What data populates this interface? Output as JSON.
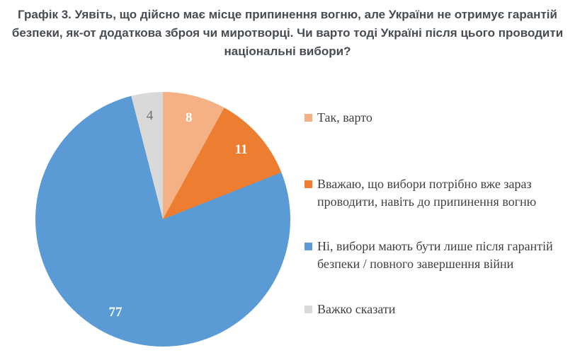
{
  "chart_data": {
    "type": "pie",
    "title": "Графік 3. Уявіть, що дійсно має місце припинення вогню, але України не отримує гарантій безпеки, як-от додаткова зброя чи миротворці. Чи варто тоді Україні після цього проводити національні вибори?",
    "unit": "percent",
    "start_angle_deg": 0,
    "direction": "clockwise",
    "legend_position": "right",
    "slices": [
      {
        "label": "Так, варто",
        "value": 8,
        "color": "#F4B183",
        "value_label_color": "#FFFFFF",
        "value_label_weight": "bold"
      },
      {
        "label": "Вважаю, що вибори потрібно вже зараз проводити, навіть до припинення вогню",
        "value": 11,
        "color": "#ED7D31",
        "value_label_color": "#FFFFFF",
        "value_label_weight": "bold"
      },
      {
        "label": "Ні, вибори мають бути лише після гарантій безпеки / повного завершення війни",
        "value": 77,
        "color": "#5B9BD5",
        "value_label_color": "#FFFFFF",
        "value_label_weight": "bold"
      },
      {
        "label": "Важко сказати",
        "value": 4,
        "color": "#D9D9D9",
        "value_label_color": "#6E6E6E",
        "value_label_weight": "normal"
      }
    ]
  },
  "layout": {
    "title_color": "#474C52",
    "legend_text_color": "#404040",
    "background": "#FFFFFF"
  }
}
